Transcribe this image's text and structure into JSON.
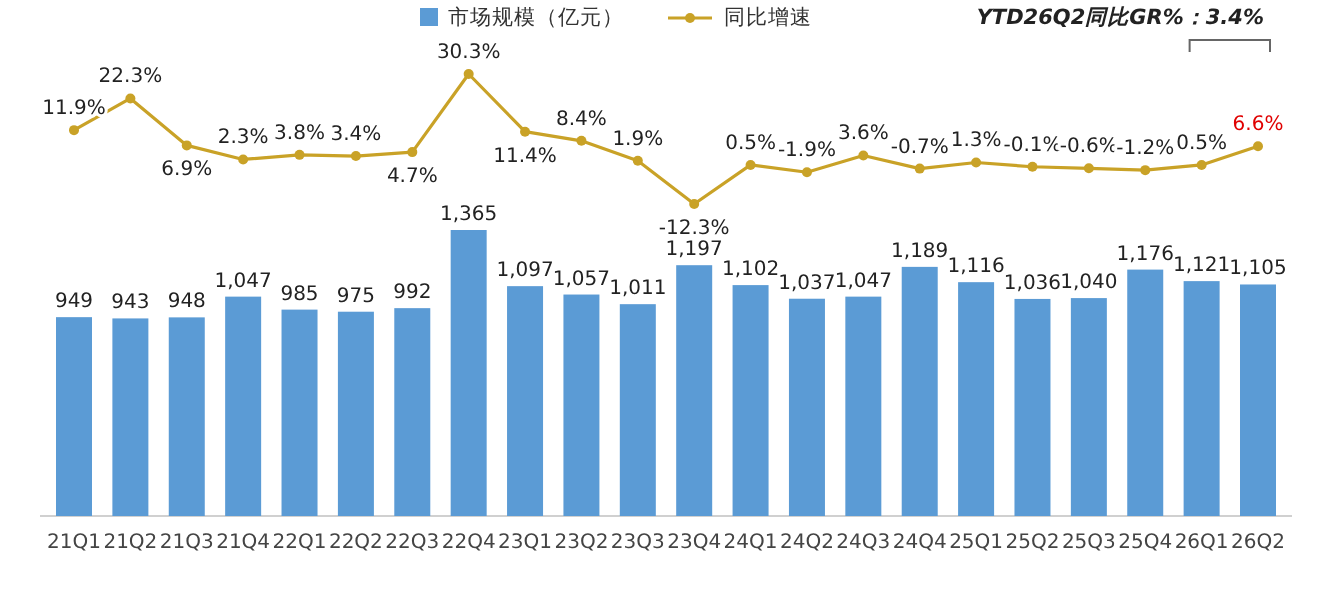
{
  "chart_data": [
    {
      "type": "line",
      "categories": [
        null,
        null,
        null,
        null,
        null,
        null,
        null,
        null,
        null,
        null,
        null,
        null,
        null,
        null,
        null,
        null,
        null,
        null,
        null,
        null,
        null,
        null
      ],
      "series": [
        {
          "name": "同比增速",
          "color": "#c9a227",
          "values": [
            11.9,
            22.3,
            6.9,
            2.3,
            3.8,
            3.4,
            4.7,
            30.3,
            11.4,
            8.4,
            1.9,
            -12.3,
            0.5,
            -1.9,
            3.6,
            -0.7,
            1.3,
            -0.1,
            -0.6,
            -1.2,
            0.5,
            6.6
          ],
          "value_labels": [
            "11.9%",
            "22.3%",
            "6.9%",
            "2.3%",
            "3.8%",
            "3.4%",
            "4.7%",
            "30.3%",
            "11.4%",
            "8.4%",
            "1.9%",
            "-12.3%",
            "0.5%",
            "-1.9%",
            "3.6%",
            "-0.7%",
            "1.3%",
            "-0.1%",
            "-0.6%",
            "-1.2%",
            "0.5%",
            "6.6%"
          ]
        }
      ],
      "marker": "circle",
      "legend": "top",
      "annotations": [
        "YTD26Q2同比GR%：3.4%"
      ]
    },
    {
      "type": "bar",
      "categories": [
        "21Q1",
        "21Q2",
        "21Q3",
        "21Q4",
        "22Q1",
        "22Q2",
        "22Q3",
        "22Q4",
        "23Q1",
        "23Q2",
        "23Q3",
        "23Q4",
        "24Q1",
        "24Q2",
        "24Q3",
        "24Q4",
        "25Q1",
        "25Q2",
        "25Q3",
        "25Q4",
        "26Q1",
        "26Q2"
      ],
      "series": [
        {
          "name": "市场规模（亿元）",
          "color": "#5b9bd5",
          "values": [
            949,
            943,
            948,
            1047,
            985,
            975,
            992,
            1365,
            1097,
            1057,
            1011,
            1197,
            1102,
            1037,
            1047,
            1189,
            1116,
            1036,
            1040,
            1176,
            1121,
            1105
          ],
          "value_labels": [
            "949",
            "943",
            "948",
            "1,047",
            "985",
            "975",
            "992",
            "1,365",
            "1,097",
            "1,057",
            "1,011",
            "1,197",
            "1,102",
            "1,037",
            "1,047",
            "1,189",
            "1,116",
            "1,036",
            "1,040",
            "1,176",
            "1,121",
            "1,105"
          ]
        }
      ],
      "legend": "top"
    }
  ]
}
